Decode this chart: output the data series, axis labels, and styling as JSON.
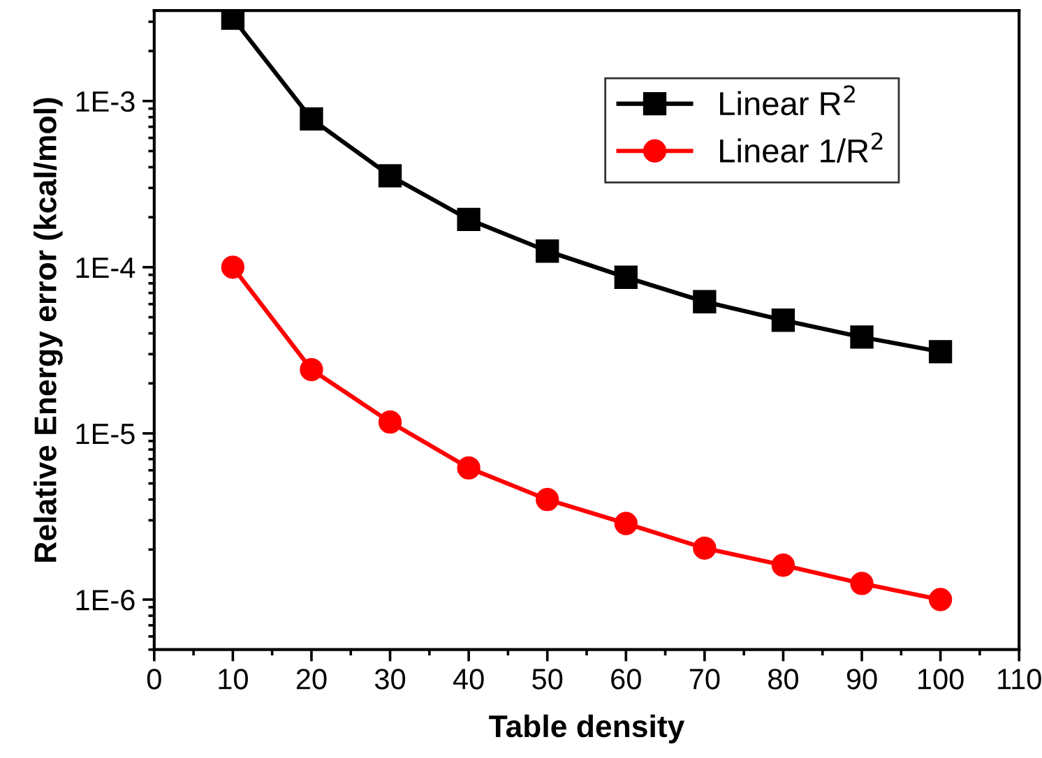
{
  "chart_data": {
    "type": "line",
    "xlabel": "Table density",
    "ylabel": "Relative Energy error (kcal/mol)",
    "x": [
      10,
      20,
      30,
      40,
      50,
      60,
      70,
      80,
      90,
      100
    ],
    "series": [
      {
        "name": "Linear R$^{2}$",
        "color": "#000000",
        "marker": "square",
        "values": [
          0.00315,
          0.00078,
          0.000355,
          0.000194,
          0.000125,
          8.7e-05,
          6.2e-05,
          4.8e-05,
          3.8e-05,
          3.1e-05
        ]
      },
      {
        "name": "Linear 1/R$^{2}$",
        "color": "#ff0000",
        "marker": "circle",
        "values": [
          0.0001,
          2.42e-05,
          1.17e-05,
          6.2e-06,
          4e-06,
          2.87e-06,
          2.04e-06,
          1.61e-06,
          1.25e-06,
          1e-06
        ]
      }
    ],
    "log": "y",
    "xlim": [
      0,
      110
    ],
    "xticks": [
      0,
      10,
      20,
      30,
      40,
      50,
      60,
      70,
      80,
      90,
      100,
      110
    ],
    "ylim": [
      5e-07,
      0.0035
    ],
    "yticks": [
      {
        "value": 1e-06,
        "label": "1E-6"
      },
      {
        "value": 1e-05,
        "label": "1E-5"
      },
      {
        "value": 0.0001,
        "label": "1E-4"
      },
      {
        "value": 0.001,
        "label": "1E-3"
      }
    ],
    "grid": false,
    "legend": "top right",
    "line_style": "solid"
  }
}
